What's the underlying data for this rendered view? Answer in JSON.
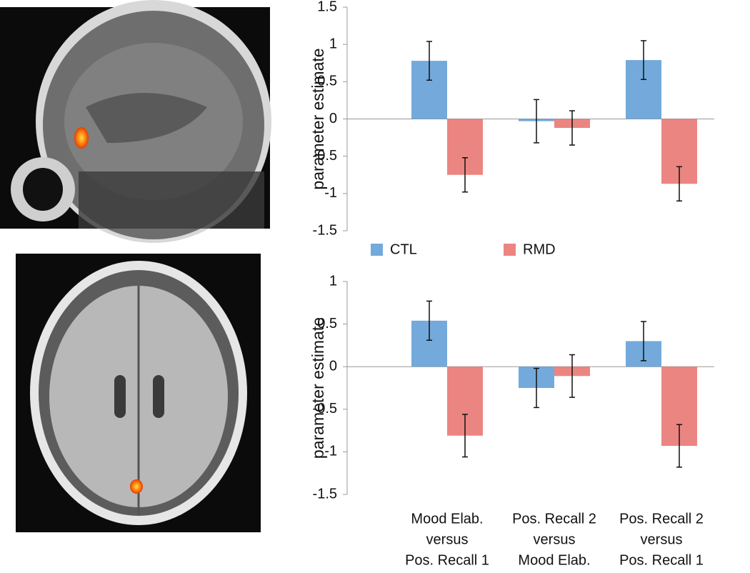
{
  "chart_data": [
    {
      "type": "bar",
      "ylabel": "parameter estimate",
      "categories": [
        null,
        null,
        null
      ],
      "series": [
        {
          "name": "CTL",
          "color": "#5b9bd5",
          "values": [
            0.78,
            -0.03,
            0.79
          ],
          "errors": [
            0.26,
            0.29,
            0.26
          ]
        },
        {
          "name": "RMD",
          "color": "#e8706b",
          "values": [
            -0.75,
            -0.12,
            -0.87
          ],
          "errors": [
            0.23,
            0.23,
            0.23
          ]
        }
      ],
      "ylim": [
        -1.5,
        1.5
      ],
      "yticks": [
        1.5,
        1,
        0.5,
        0,
        -0.5,
        -1,
        -1.5
      ],
      "legend": "bottom"
    },
    {
      "type": "bar",
      "ylabel": "parameter estimate",
      "categories": [
        [
          "Mood Elab.",
          "versus",
          "Pos. Recall 1"
        ],
        [
          "Pos. Recall 2",
          "versus",
          "Mood Elab."
        ],
        [
          "Pos. Recall 2",
          "versus",
          "Pos. Recall 1"
        ]
      ],
      "series": [
        {
          "color": "#5b9bd5",
          "values": [
            0.54,
            -0.25,
            0.3
          ],
          "errors": [
            0.23,
            0.23,
            0.23
          ]
        },
        {
          "color": "#e8706b",
          "values": [
            -0.81,
            -0.11,
            -0.93
          ],
          "errors": [
            0.25,
            0.25,
            0.25
          ]
        }
      ],
      "ylim": [
        -1.5,
        1
      ],
      "yticks": [
        1,
        0.5,
        0,
        -0.5,
        -1,
        -1.5
      ]
    }
  ]
}
